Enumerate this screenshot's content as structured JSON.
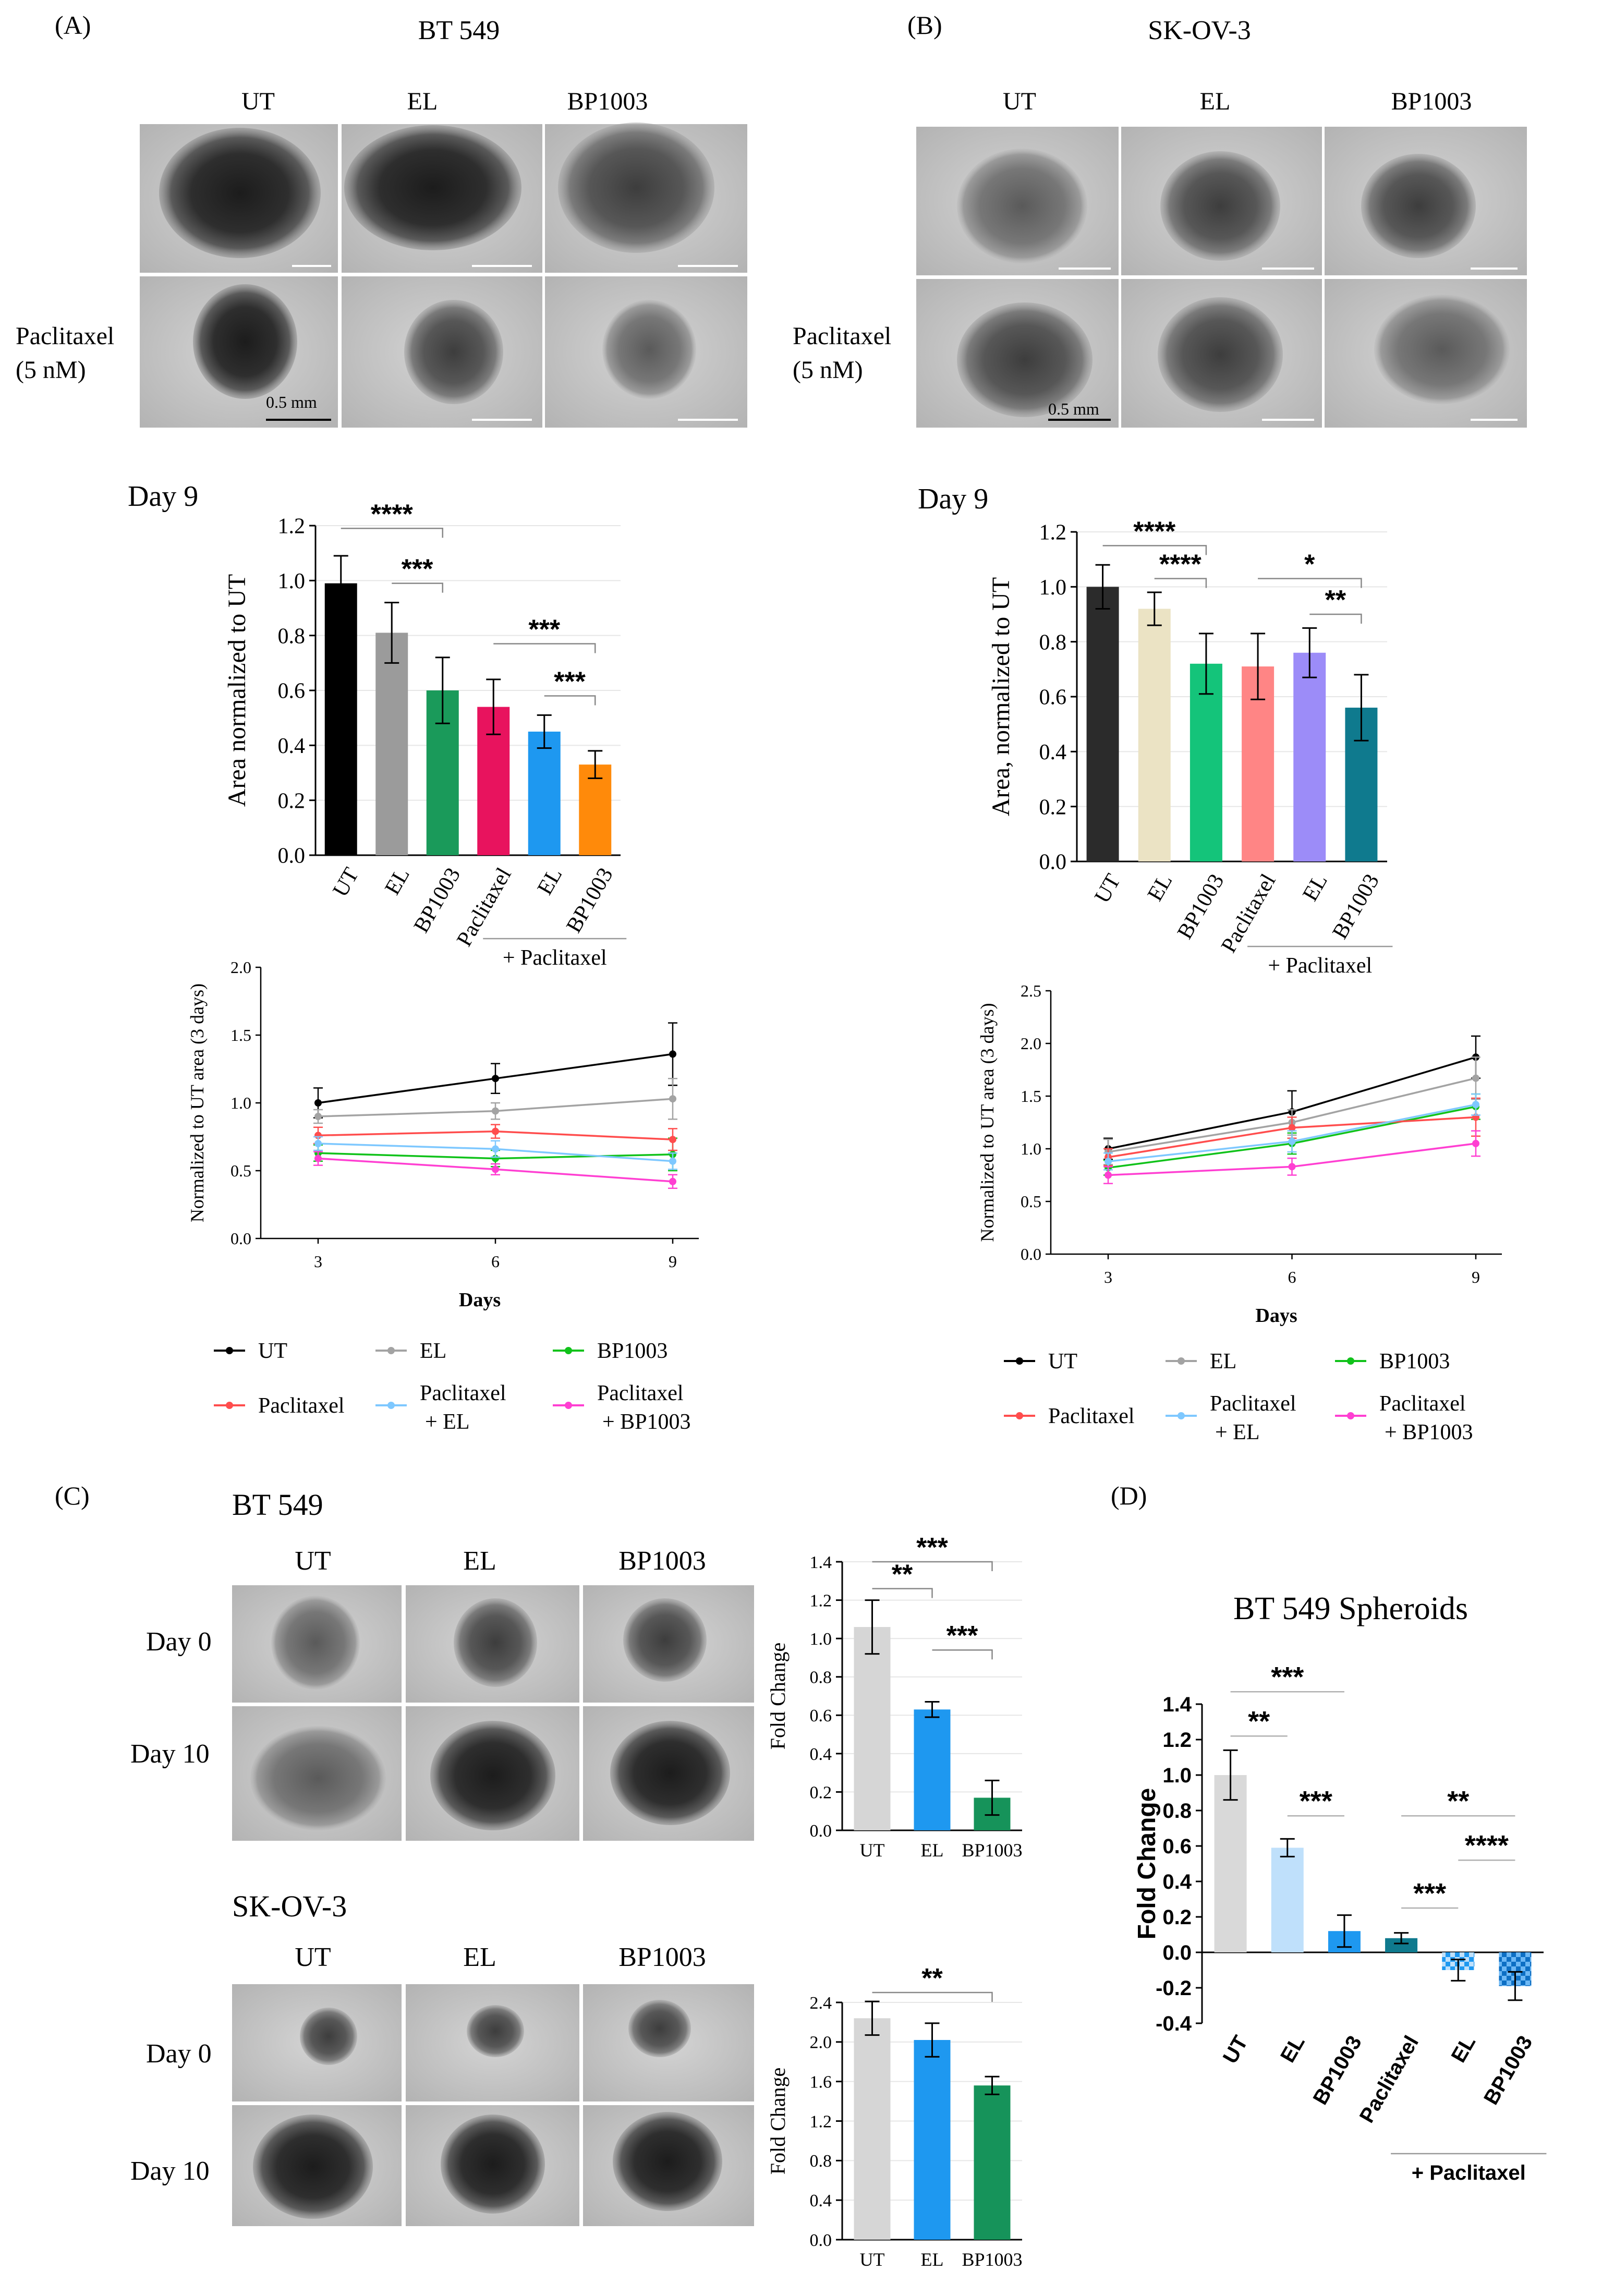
{
  "panel_labels": [
    "(A)",
    "(B)",
    "(C)",
    "(D)"
  ],
  "panel_a": {
    "title": "BT 549",
    "col_headers": [
      "UT",
      "EL",
      "BP1003"
    ],
    "row_label_1": "Paclitaxel",
    "row_label_2": "(5 nM)",
    "scale_label": "0.5 mm",
    "day_label": "Day 9"
  },
  "panel_b": {
    "title": "SK-OV-3",
    "col_headers": [
      "UT",
      "EL",
      "BP1003"
    ],
    "row_label_1": "Paclitaxel",
    "row_label_2": "(5 nM)",
    "scale_label": "0.5 mm",
    "day_label": "Day 9"
  },
  "panel_c": {
    "title_1": "BT 549",
    "title_2": "SK-OV-3",
    "col_headers": [
      "UT",
      "EL",
      "BP1003"
    ],
    "row_labels": [
      "Day 0",
      "Day 10"
    ]
  },
  "panel_d": {
    "title": "BT 549 Spheroids"
  },
  "chart_data": [
    {
      "id": "a_bar",
      "type": "bar",
      "categories": [
        "UT",
        "EL",
        "BP1003",
        "Paclitaxel",
        "EL",
        "BP1003"
      ],
      "values": [
        0.99,
        0.81,
        0.6,
        0.54,
        0.45,
        0.33
      ],
      "errors": [
        0.1,
        0.11,
        0.12,
        0.1,
        0.06,
        0.05
      ],
      "colors": [
        "#000000",
        "#9b9b9b",
        "#1a9a5a",
        "#e8135e",
        "#1e98f0",
        "#ff8a0a"
      ],
      "ylabel": "Area normalized to UT",
      "ylim": [
        0,
        1.2
      ],
      "yticks": [
        0,
        0.2,
        0.4,
        0.6,
        0.8,
        1.0,
        1.2
      ],
      "ytick_labels": [
        "0.0",
        "0.2",
        "0.4",
        "0.6",
        "0.8",
        "1.0",
        "1.2"
      ],
      "group_label": "+ Paclitaxel",
      "sig": [
        {
          "from": 0,
          "to": 2,
          "y": 1.19,
          "label": "****"
        },
        {
          "from": 1,
          "to": 2,
          "y": 0.99,
          "label": "***"
        },
        {
          "from": 3,
          "to": 5,
          "y": 0.77,
          "label": "***"
        },
        {
          "from": 4,
          "to": 5,
          "y": 0.58,
          "label": "***"
        }
      ]
    },
    {
      "id": "b_bar",
      "type": "bar",
      "categories": [
        "UT",
        "EL",
        "BP1003",
        "Paclitaxel",
        "EL",
        "BP1003"
      ],
      "values": [
        1.0,
        0.92,
        0.72,
        0.71,
        0.76,
        0.56
      ],
      "errors": [
        0.08,
        0.06,
        0.11,
        0.12,
        0.09,
        0.12
      ],
      "colors": [
        "#2b2b2b",
        "#ebe3c4",
        "#14c47a",
        "#ff8585",
        "#9c8cf8",
        "#0f7a8e"
      ],
      "ylabel": "Area, normalized to  UT",
      "ylim": [
        0,
        1.2
      ],
      "yticks": [
        0,
        0.2,
        0.4,
        0.6,
        0.8,
        1.0,
        1.2
      ],
      "ytick_labels": [
        "0.0",
        "0.2",
        "0.4",
        "0.6",
        "0.8",
        "1.0",
        "1.2"
      ],
      "group_label": "+ Paclitaxel",
      "sig": [
        {
          "from": 0,
          "to": 2,
          "y": 1.15,
          "label": "****"
        },
        {
          "from": 1,
          "to": 2,
          "y": 1.03,
          "label": "****"
        },
        {
          "from": 3,
          "to": 5,
          "y": 1.03,
          "label": "*"
        },
        {
          "from": 4,
          "to": 5,
          "y": 0.9,
          "label": "**"
        }
      ]
    },
    {
      "id": "a_line",
      "type": "line",
      "x": [
        3,
        6,
        9
      ],
      "xlabel": "Days",
      "ylabel": "Normalized to  UT area (3 days)",
      "ylim": [
        0,
        2.0
      ],
      "yticks": [
        0,
        0.5,
        1.0,
        1.5,
        2.0
      ],
      "ytick_labels": [
        "0.0",
        "0.5",
        "1.0",
        "1.5",
        "2.0"
      ],
      "series": [
        {
          "name": "UT",
          "color": "#000000",
          "values": [
            1.0,
            1.18,
            1.36
          ],
          "errors": [
            0.11,
            0.11,
            0.23
          ]
        },
        {
          "name": "EL",
          "color": "#a3a3a3",
          "values": [
            0.9,
            0.94,
            1.03
          ],
          "errors": [
            0.05,
            0.06,
            0.15
          ]
        },
        {
          "name": "BP1003",
          "color": "#10c21a",
          "values": [
            0.63,
            0.59,
            0.62
          ],
          "errors": [
            0.06,
            0.06,
            0.12
          ]
        },
        {
          "name": "Paclitaxel",
          "color": "#ff4d4d",
          "values": [
            0.76,
            0.79,
            0.73
          ],
          "errors": [
            0.06,
            0.05,
            0.08
          ]
        },
        {
          "name": "Paclitaxel + EL",
          "color": "#7ec8ff",
          "values": [
            0.7,
            0.66,
            0.57
          ],
          "errors": [
            0.05,
            0.06,
            0.06
          ]
        },
        {
          "name": "Paclitaxel + BP1003",
          "color": "#ff3fd2",
          "values": [
            0.59,
            0.51,
            0.42
          ],
          "errors": [
            0.05,
            0.04,
            0.05
          ]
        }
      ]
    },
    {
      "id": "b_line",
      "type": "line",
      "x": [
        3,
        6,
        9
      ],
      "xlabel": "Days",
      "ylabel": "Normalized to  UT area (3 days)",
      "ylim": [
        0,
        2.5
      ],
      "yticks": [
        0,
        0.5,
        1.0,
        1.5,
        2.0,
        2.5
      ],
      "ytick_labels": [
        "0.0",
        "0.5",
        "1.0",
        "1.5",
        "2.0",
        "2.5"
      ],
      "series": [
        {
          "name": "UT",
          "color": "#000000",
          "values": [
            1.0,
            1.35,
            1.87
          ],
          "errors": [
            0.1,
            0.2,
            0.2
          ]
        },
        {
          "name": "EL",
          "color": "#a3a3a3",
          "values": [
            0.97,
            1.25,
            1.67
          ],
          "errors": [
            0.12,
            0.12,
            0.2
          ]
        },
        {
          "name": "BP1003",
          "color": "#10c21a",
          "values": [
            0.82,
            1.05,
            1.4
          ],
          "errors": [
            0.07,
            0.1,
            0.12
          ]
        },
        {
          "name": "Paclitaxel",
          "color": "#ff4d4d",
          "values": [
            0.92,
            1.2,
            1.3
          ],
          "errors": [
            0.08,
            0.1,
            0.18
          ]
        },
        {
          "name": "Paclitaxel + EL",
          "color": "#7ec8ff",
          "values": [
            0.88,
            1.07,
            1.42
          ],
          "errors": [
            0.08,
            0.1,
            0.1
          ]
        },
        {
          "name": "Paclitaxel + BP1003",
          "color": "#ff3fd2",
          "values": [
            0.75,
            0.83,
            1.05
          ],
          "errors": [
            0.08,
            0.08,
            0.12
          ]
        }
      ]
    },
    {
      "id": "c_bar_1",
      "type": "bar",
      "categories": [
        "UT",
        "EL",
        "BP1003"
      ],
      "values": [
        1.06,
        0.63,
        0.17
      ],
      "errors": [
        0.14,
        0.04,
        0.09
      ],
      "colors": [
        "#d6d6d6",
        "#1e98f0",
        "#16935a"
      ],
      "ylabel": "Fold Change",
      "ylim": [
        0,
        1.4
      ],
      "yticks": [
        0,
        0.2,
        0.4,
        0.6,
        0.8,
        1.0,
        1.2,
        1.4
      ],
      "ytick_labels": [
        "0.0",
        "0.2",
        "0.4",
        "0.6",
        "0.8",
        "1.0",
        "1.2",
        "1.4"
      ],
      "sig": [
        {
          "from": 0,
          "to": 2,
          "y": 1.4,
          "label": "***"
        },
        {
          "from": 0,
          "to": 1,
          "y": 1.26,
          "label": "**"
        },
        {
          "from": 1,
          "to": 2,
          "y": 0.94,
          "label": "***"
        }
      ]
    },
    {
      "id": "c_bar_2",
      "type": "bar",
      "categories": [
        "UT",
        "EL",
        "BP1003"
      ],
      "values": [
        2.24,
        2.02,
        1.56
      ],
      "errors": [
        0.17,
        0.17,
        0.09
      ],
      "colors": [
        "#d6d6d6",
        "#1e98f0",
        "#16935a"
      ],
      "ylabel": "Fold Change",
      "ylim": [
        0,
        2.4
      ],
      "yticks": [
        0,
        0.4,
        0.8,
        1.2,
        1.6,
        2.0,
        2.4
      ],
      "ytick_labels": [
        "0.0",
        "0.4",
        "0.8",
        "1.2",
        "1.6",
        "2.0",
        "2.4"
      ],
      "sig": [
        {
          "from": 0,
          "to": 2,
          "y": 2.5,
          "label": "**"
        }
      ]
    },
    {
      "id": "d_bar",
      "type": "bar",
      "categories": [
        "UT",
        "EL",
        "BP1003",
        "Paclitaxel",
        "EL",
        "BP1003"
      ],
      "values": [
        1.0,
        0.59,
        0.12,
        0.08,
        -0.1,
        -0.19
      ],
      "errors": [
        0.14,
        0.05,
        0.09,
        0.03,
        0.06,
        0.08
      ],
      "colors": [
        "#d9d9d9",
        "#bfe0fb",
        "#1e98f0",
        "#0f7a8e",
        "#bfe0fb",
        "#1e98f0"
      ],
      "hatched": [
        false,
        false,
        false,
        false,
        true,
        true
      ],
      "ylabel": "Fold Change",
      "ylim": [
        -0.4,
        1.4
      ],
      "yticks": [
        -0.4,
        -0.2,
        0,
        0.2,
        0.4,
        0.6,
        0.8,
        1.0,
        1.2,
        1.4
      ],
      "ytick_labels": [
        "-0.4",
        "-0.2",
        "0.0",
        "0.2",
        "0.4",
        "0.6",
        "0.8",
        "1.0",
        "1.2",
        "1.4"
      ],
      "group_label": "+ Paclitaxel",
      "sig": [
        {
          "from": 0,
          "to": 2,
          "y": 1.47,
          "label": "***"
        },
        {
          "from": 0,
          "to": 1,
          "y": 1.22,
          "label": "**"
        },
        {
          "from": 1,
          "to": 2,
          "y": 0.77,
          "label": "***"
        },
        {
          "from": 3,
          "to": 5,
          "y": 0.77,
          "label": "**"
        },
        {
          "from": 4,
          "to": 5,
          "y": 0.52,
          "label": "****"
        },
        {
          "from": 3,
          "to": 4,
          "y": 0.25,
          "label": "***"
        }
      ]
    }
  ],
  "legends": [
    {
      "id": "a_legend",
      "items": [
        {
          "label": "UT",
          "color": "#000000"
        },
        {
          "label": "EL",
          "color": "#a3a3a3"
        },
        {
          "label": "BP1003",
          "color": "#10c21a"
        },
        {
          "label": "Paclitaxel",
          "color": "#ff4d4d"
        },
        {
          "label": "Paclitaxel\n+ EL",
          "color": "#7ec8ff"
        },
        {
          "label": "Paclitaxel\n+ BP1003",
          "color": "#ff3fd2"
        }
      ]
    },
    {
      "id": "b_legend",
      "items": [
        {
          "label": "UT",
          "color": "#000000"
        },
        {
          "label": "EL",
          "color": "#a3a3a3"
        },
        {
          "label": "BP1003",
          "color": "#10c21a"
        },
        {
          "label": "Paclitaxel",
          "color": "#ff4d4d"
        },
        {
          "label": "Paclitaxel\n+ EL",
          "color": "#7ec8ff"
        },
        {
          "label": "Paclitaxel\n+ BP1003",
          "color": "#ff3fd2"
        }
      ]
    }
  ]
}
